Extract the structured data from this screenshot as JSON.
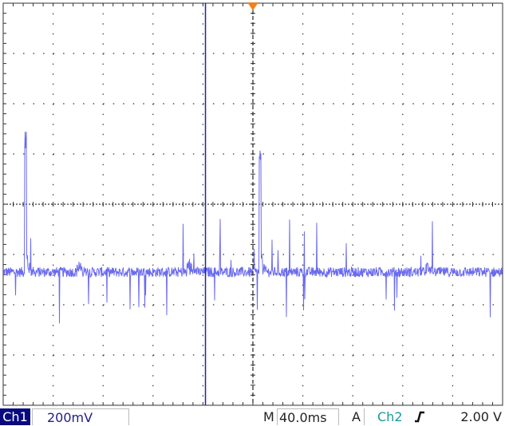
{
  "status": {
    "channel": "Ch1",
    "vertical_scale": "200mV",
    "timebase_prefix": "M",
    "timebase": "40.0ms",
    "trigger_mode": "A",
    "trigger_source": "Ch2",
    "trigger_slope_icon": "rising-edge-icon",
    "trigger_level": "2.00 V"
  },
  "colors": {
    "trace": "#6a6af0",
    "cursor": "#2020a0",
    "trigger_marker": "#f08020",
    "grid": "#333333",
    "channel_badge": "#0a0a80",
    "ch2": "#1a9a9a"
  },
  "chart_data": {
    "type": "line",
    "title": "",
    "xlabel": "",
    "ylabel": "",
    "x_unit": "ms",
    "y_unit": "mV",
    "divisions": {
      "horizontal": 10,
      "vertical": 8
    },
    "xlim": [
      0,
      400
    ],
    "ylim": [
      -800,
      800
    ],
    "grid": true,
    "baseline": -270,
    "noise_amplitude": 25,
    "cursor_x": 162,
    "trigger_x": 200,
    "features": [
      {
        "x": 18,
        "y": 289,
        "label": "spike"
      },
      {
        "x": 61,
        "y": -230,
        "label": "bump"
      },
      {
        "x": 149,
        "y": -200,
        "label": "bump"
      },
      {
        "x": 206,
        "y": 248,
        "label": "spike"
      },
      {
        "x": 340,
        "y": -230,
        "label": "bump"
      }
    ]
  }
}
